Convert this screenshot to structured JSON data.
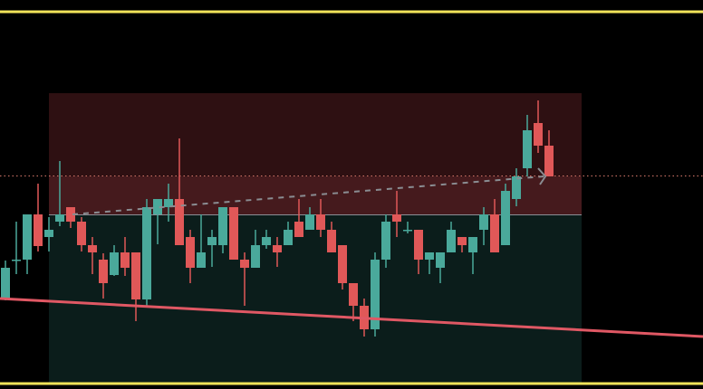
{
  "chart_data": {
    "type": "candlestick",
    "up_color": "#4aa99b",
    "down_color": "#e05858",
    "ylim": [
      0,
      430
    ],
    "open": [
      100,
      142,
      143,
      193,
      168,
      185,
      201,
      185,
      159,
      143,
      126,
      151,
      151,
      99,
      193,
      201,
      210,
      168,
      134,
      159,
      159,
      201,
      143,
      134,
      159,
      159,
      159,
      185,
      176,
      193,
      176,
      159,
      117,
      92,
      66,
      143,
      193,
      176,
      176,
      143,
      134,
      151,
      168,
      151,
      176,
      193,
      159,
      210,
      244,
      294,
      269
    ],
    "high": [
      142,
      185,
      193,
      227,
      190,
      252,
      201,
      190,
      168,
      150,
      159,
      168,
      151,
      210,
      210,
      227,
      277,
      176,
      193,
      176,
      201,
      201,
      151,
      176,
      176,
      168,
      185,
      210,
      201,
      210,
      185,
      159,
      117,
      100,
      151,
      193,
      219,
      185,
      176,
      151,
      151,
      185,
      168,
      168,
      201,
      210,
      227,
      244,
      303,
      319,
      286
    ],
    "low": [
      98,
      127,
      127,
      152,
      152,
      180,
      178,
      152,
      127,
      100,
      125,
      125,
      75,
      90,
      160,
      185,
      159,
      117,
      134,
      135,
      150,
      143,
      92,
      134,
      155,
      135,
      159,
      168,
      176,
      168,
      151,
      110,
      75,
      58,
      58,
      134,
      168,
      172,
      127,
      127,
      117,
      151,
      151,
      127,
      159,
      151,
      159,
      202,
      235,
      261,
      235
    ],
    "close": [
      134,
      143,
      193,
      158,
      176,
      193,
      185,
      159,
      151,
      117,
      151,
      134,
      99,
      201,
      210,
      210,
      159,
      134,
      151,
      168,
      201,
      143,
      134,
      159,
      168,
      151,
      176,
      168,
      193,
      176,
      151,
      117,
      92,
      66,
      143,
      185,
      185,
      176,
      143,
      151,
      151,
      176,
      159,
      168,
      193,
      151,
      219,
      235,
      286,
      269,
      235
    ]
  }
}
